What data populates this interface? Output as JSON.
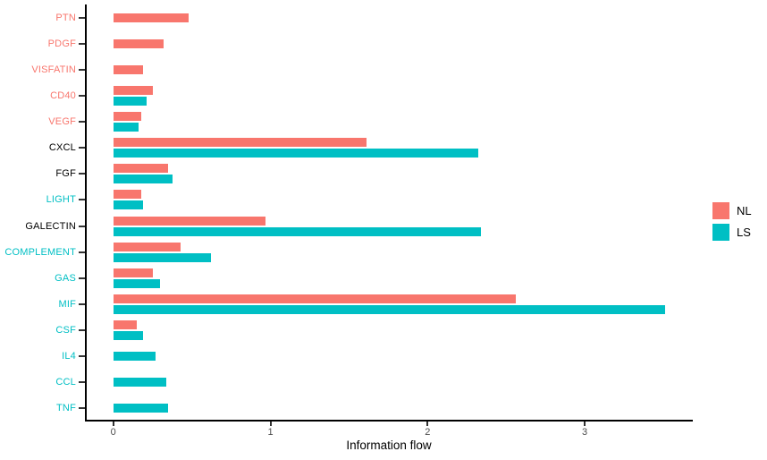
{
  "chart_data": {
    "type": "bar",
    "orientation": "horizontal",
    "title": "",
    "xlabel": "Information flow",
    "ylabel": "",
    "xlim": [
      -0.17,
      3.69
    ],
    "x_ticks": [
      0,
      1,
      2,
      3
    ],
    "x_tick_labels": [
      "0",
      "1",
      "2",
      "3"
    ],
    "grid": false,
    "legend_position": "right",
    "categories": [
      "PTN",
      "PDGF",
      "VISFATIN",
      "CD40",
      "VEGF",
      "CXCL",
      "FGF",
      "LIGHT",
      "GALECTIN",
      "COMPLEMENT",
      "GAS",
      "MIF",
      "CSF",
      "IL4",
      "CCL",
      "TNF"
    ],
    "category_label_colors": [
      "#F8766D",
      "#F8766D",
      "#F8766D",
      "#F8766D",
      "#F8766D",
      "#000000",
      "#000000",
      "#00BFC4",
      "#000000",
      "#00BFC4",
      "#00BFC4",
      "#00BFC4",
      "#00BFC4",
      "#00BFC4",
      "#00BFC4",
      "#00BFC4"
    ],
    "series": [
      {
        "name": "NL",
        "color": "#F8766D",
        "values": [
          0.48,
          0.32,
          0.19,
          0.25,
          0.18,
          1.61,
          0.35,
          0.18,
          0.97,
          0.43,
          0.25,
          2.56,
          0.15,
          null,
          null,
          null
        ]
      },
      {
        "name": "LS",
        "color": "#00BFC4",
        "values": [
          null,
          null,
          null,
          0.21,
          0.16,
          2.32,
          0.38,
          0.19,
          2.34,
          0.62,
          0.3,
          3.51,
          0.19,
          0.27,
          0.34,
          0.35
        ]
      }
    ]
  },
  "axis": {
    "line_color": "#000000",
    "tick_color": "#333333",
    "tick_label_color": "#4d4d4d"
  }
}
